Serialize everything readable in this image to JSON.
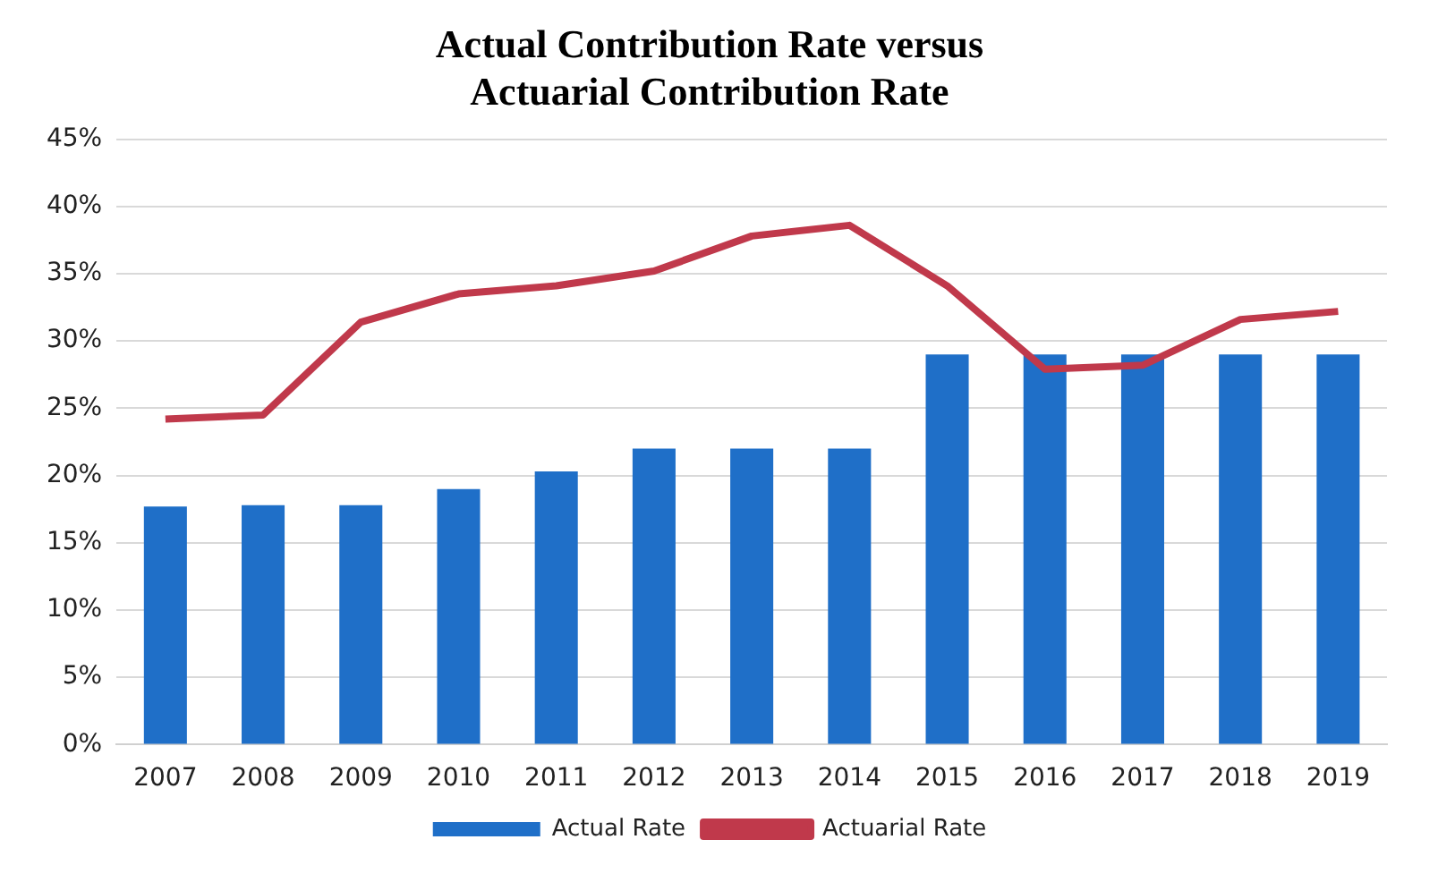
{
  "chart_data": {
    "type": "bar",
    "title": "Actual Contribution Rate versus\nActuarial Contribution Rate",
    "categories": [
      "2007",
      "2008",
      "2009",
      "2010",
      "2011",
      "2012",
      "2013",
      "2014",
      "2015",
      "2016",
      "2017",
      "2018",
      "2019"
    ],
    "series": [
      {
        "name": "Actual Rate",
        "color": "#1f6fc8",
        "values": [
          17.7,
          17.8,
          17.8,
          19.0,
          20.3,
          22.0,
          22.0,
          22.0,
          29.0,
          29.0,
          29.0,
          29.0,
          29.0
        ]
      },
      {
        "name": "Actuarial Rate",
        "type": "line",
        "color": "#c0394b",
        "values": [
          24.2,
          24.5,
          31.4,
          33.5,
          34.1,
          35.2,
          37.8,
          38.6,
          34.1,
          27.9,
          28.2,
          31.6,
          32.2
        ]
      }
    ],
    "ylim": [
      0,
      45
    ],
    "yticks": [
      {
        "value": 0,
        "label": "0%"
      },
      {
        "value": 5,
        "label": "5%"
      },
      {
        "value": 10,
        "label": "10%"
      },
      {
        "value": 15,
        "label": "15%"
      },
      {
        "value": 20,
        "label": "20%"
      },
      {
        "value": 25,
        "label": "25%"
      },
      {
        "value": 30,
        "label": "30%"
      },
      {
        "value": 35,
        "label": "35%"
      },
      {
        "value": 40,
        "label": "40%"
      },
      {
        "value": 45,
        "label": "45%"
      }
    ],
    "grid": "y",
    "legend": "bottom",
    "marker": "none",
    "line_style": "solid"
  }
}
